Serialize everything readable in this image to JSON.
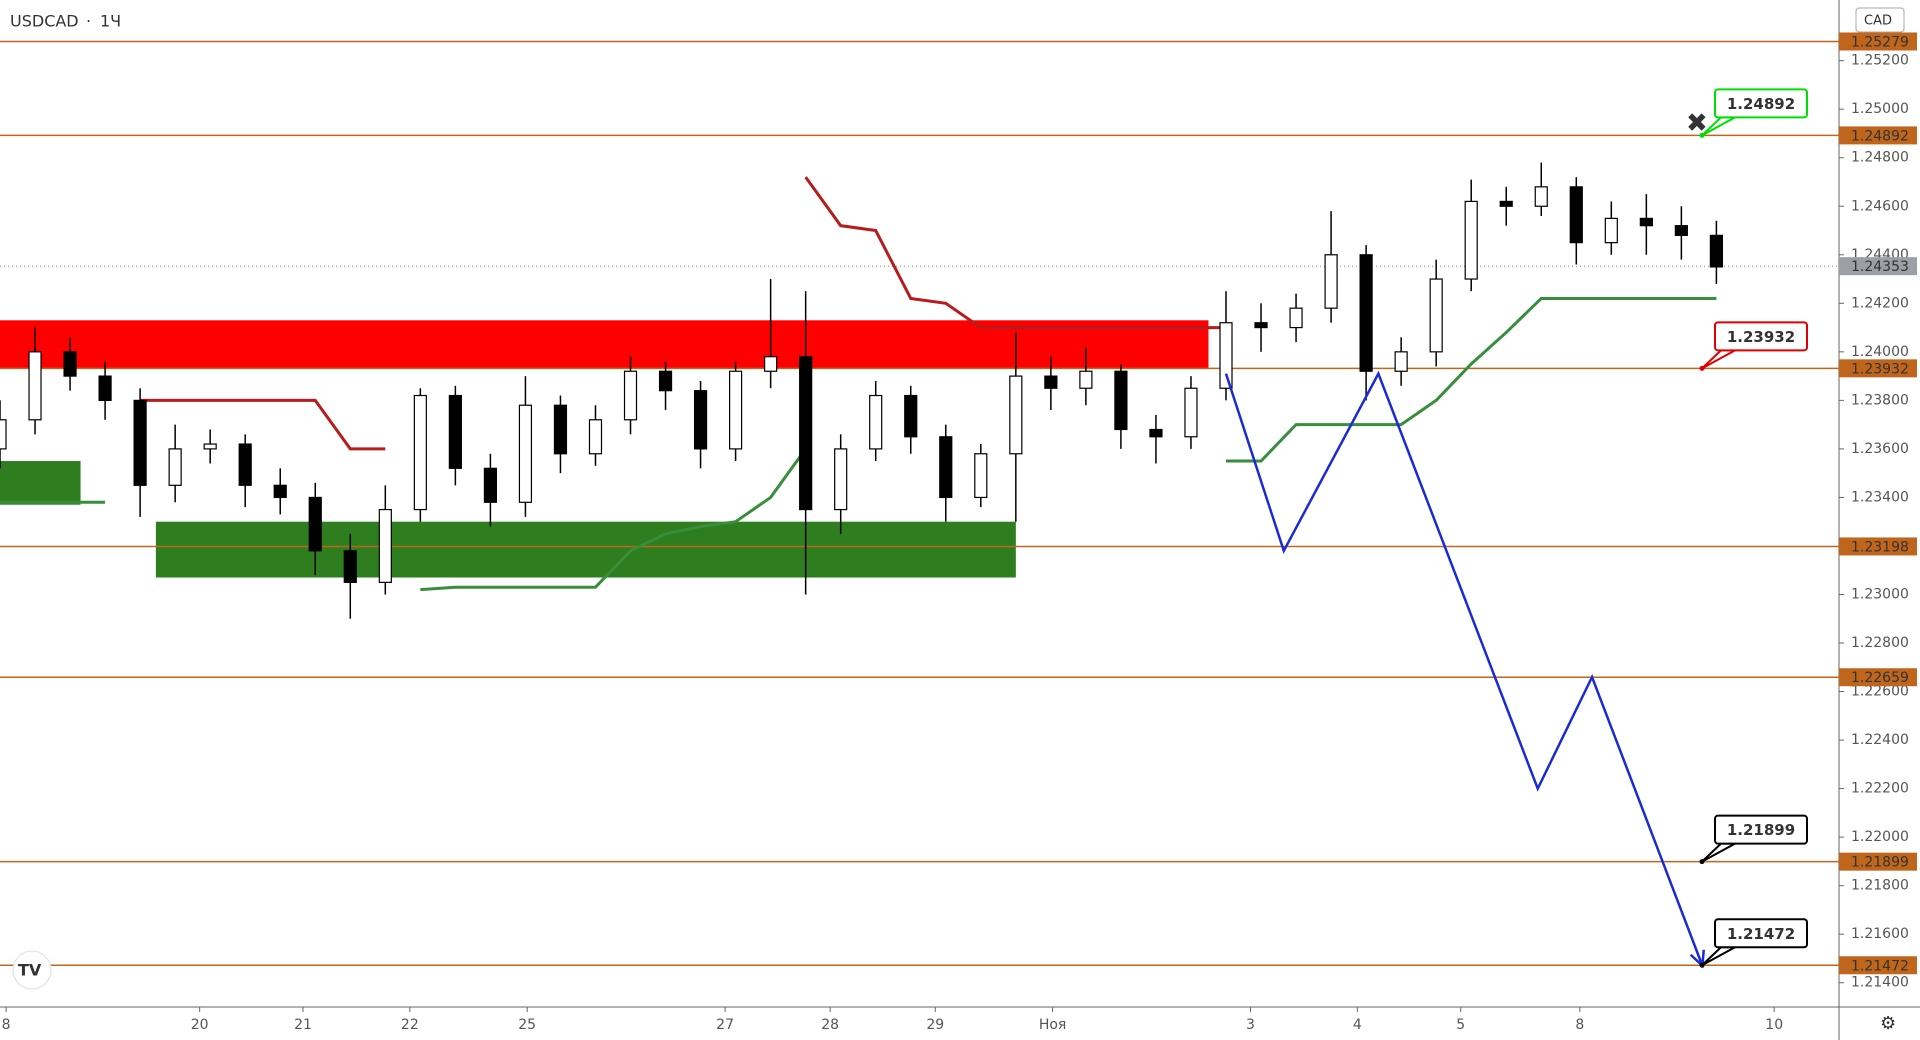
{
  "chart_data": {
    "type": "candlestick",
    "title": "USDCAD",
    "interval": "1Ч",
    "currency": "CAD",
    "x": [
      0,
      2,
      4,
      6,
      8,
      10,
      12,
      14,
      16,
      18,
      20,
      22,
      24,
      26,
      28,
      30,
      32,
      34,
      36,
      38,
      40,
      42,
      44,
      46,
      48,
      50,
      52,
      54,
      56,
      58,
      60,
      62,
      64,
      66,
      68,
      70,
      72,
      74,
      76,
      78,
      80,
      82,
      84,
      86,
      88,
      90,
      92,
      94,
      96,
      98
    ],
    "open": [
      1.236,
      1.2372,
      1.24,
      1.239,
      1.238,
      1.2345,
      1.236,
      1.2362,
      1.2345,
      1.234,
      1.2318,
      1.2305,
      1.2335,
      1.2382,
      1.2352,
      1.2338,
      1.2378,
      1.2358,
      1.2372,
      1.2392,
      1.2384,
      1.236,
      1.2392,
      1.2398,
      1.2335,
      1.236,
      1.2382,
      1.2365,
      1.234,
      1.2358,
      1.239,
      1.2385,
      1.2392,
      1.2368,
      1.2365,
      1.2385,
      1.2412,
      1.241,
      1.2418,
      1.244,
      1.2392,
      1.24,
      1.243,
      1.2462,
      1.246,
      1.2468,
      1.2445,
      1.2455,
      1.2452,
      1.2448
    ],
    "high": [
      1.238,
      1.241,
      1.2406,
      1.2396,
      1.2385,
      1.237,
      1.2368,
      1.2366,
      1.2352,
      1.2346,
      1.2325,
      1.2345,
      1.2385,
      1.2386,
      1.2358,
      1.239,
      1.2382,
      1.2378,
      1.2398,
      1.2396,
      1.2388,
      1.2396,
      1.243,
      1.2425,
      1.2366,
      1.2388,
      1.2386,
      1.237,
      1.2362,
      1.2408,
      1.2398,
      1.2402,
      1.2395,
      1.2374,
      1.239,
      1.2425,
      1.242,
      1.2424,
      1.2458,
      1.2444,
      1.2406,
      1.2438,
      1.2471,
      1.2468,
      1.2478,
      1.2472,
      1.2462,
      1.2465,
      1.246,
      1.2454
    ],
    "low": [
      1.2352,
      1.2366,
      1.2384,
      1.2372,
      1.2332,
      1.2338,
      1.2354,
      1.2336,
      1.2333,
      1.2308,
      1.229,
      1.23,
      1.233,
      1.2345,
      1.2328,
      1.2332,
      1.235,
      1.2353,
      1.2366,
      1.2376,
      1.2352,
      1.2355,
      1.2385,
      1.23,
      1.2325,
      1.2355,
      1.2358,
      1.233,
      1.2336,
      1.233,
      1.2376,
      1.2378,
      1.236,
      1.2354,
      1.236,
      1.238,
      1.24,
      1.2404,
      1.2412,
      1.238,
      1.2386,
      1.2394,
      1.2425,
      1.2452,
      1.2456,
      1.2436,
      1.244,
      1.244,
      1.2438,
      1.2428
    ],
    "close": [
      1.2372,
      1.24,
      1.239,
      1.238,
      1.2345,
      1.236,
      1.2362,
      1.2345,
      1.234,
      1.2318,
      1.2305,
      1.2335,
      1.2382,
      1.2352,
      1.2338,
      1.2378,
      1.2358,
      1.2372,
      1.2392,
      1.2384,
      1.236,
      1.2392,
      1.2398,
      1.2335,
      1.236,
      1.2382,
      1.2365,
      1.234,
      1.2358,
      1.239,
      1.2385,
      1.2392,
      1.2368,
      1.2365,
      1.2385,
      1.2412,
      1.241,
      1.2418,
      1.244,
      1.2392,
      1.24,
      1.243,
      1.2462,
      1.246,
      1.2468,
      1.2445,
      1.2455,
      1.2452,
      1.2448,
      1.2435
    ],
    "trend_down": {
      "color": "#b71c1c",
      "values": [
        null,
        null,
        null,
        null,
        1.238,
        1.238,
        1.238,
        1.238,
        1.238,
        1.238,
        1.236,
        1.236,
        null,
        null,
        null,
        null,
        null,
        null,
        null,
        null,
        null,
        null,
        null,
        1.2472,
        1.2452,
        1.245,
        1.2422,
        1.242,
        1.241,
        1.241,
        1.241,
        1.241,
        1.241,
        1.241,
        1.241,
        1.241,
        null,
        null,
        null,
        null,
        null,
        null,
        null,
        null,
        null,
        null,
        null,
        null,
        null,
        null
      ]
    },
    "trend_up": {
      "color": "#388e3c",
      "values": [
        1.2338,
        1.2338,
        1.2338,
        1.2338,
        null,
        null,
        null,
        null,
        null,
        null,
        null,
        null,
        1.2302,
        1.2303,
        1.2303,
        1.2303,
        1.2303,
        1.2303,
        1.2318,
        1.2325,
        1.2328,
        1.233,
        1.234,
        1.236,
        null,
        null,
        null,
        null,
        null,
        null,
        null,
        null,
        null,
        null,
        null,
        1.2355,
        1.2355,
        1.237,
        1.237,
        1.237,
        1.237,
        1.238,
        1.2395,
        1.2408,
        1.2422,
        1.2422,
        1.2422,
        1.2422,
        1.2422,
        1.2422
      ]
    },
    "zones": [
      {
        "x": [
          0,
          69
        ],
        "range": [
          1.2393,
          1.2413
        ],
        "color": "#ff0000"
      },
      {
        "x": [
          8.9,
          58
        ],
        "range": [
          1.2307,
          1.233
        ],
        "color": "#2e7d1e"
      },
      {
        "x": [
          0,
          4.6
        ],
        "range": [
          1.2337,
          1.2355
        ],
        "color": "#2e7d1e"
      }
    ],
    "levels": [
      {
        "value": 1.25279,
        "color": "#c0661c"
      },
      {
        "value": 1.24892,
        "color": "#c0661c"
      },
      {
        "value": 1.23932,
        "color": "#c0661c"
      },
      {
        "value": 1.23198,
        "color": "#c0661c"
      },
      {
        "value": 1.22659,
        "color": "#c0661c"
      },
      {
        "value": 1.21899,
        "color": "#c0661c"
      },
      {
        "value": 1.21472,
        "color": "#c0661c"
      }
    ],
    "last_price": 1.24353,
    "callouts": [
      {
        "value": 1.24892,
        "color": "#00e000"
      },
      {
        "value": 1.23932,
        "color": "#e00000"
      },
      {
        "value": 1.21899,
        "color": "#000000"
      },
      {
        "value": 1.21472,
        "color": "#000000"
      }
    ],
    "forecast": {
      "color": "#1a2bd6",
      "x": [
        70,
        73.3,
        78.7,
        87.8,
        90.9,
        97.2
      ],
      "values": [
        1.2391,
        1.2318,
        1.2391,
        1.222,
        1.2266,
        1.2147
      ]
    },
    "xlim": [
      0,
      105
    ],
    "ylim": [
      1.213,
      1.2545
    ],
    "xticks": [
      {
        "value": 0.35,
        "label": "8"
      },
      {
        "value": 11.4,
        "label": "20"
      },
      {
        "value": 17.3,
        "label": "21"
      },
      {
        "value": 23.4,
        "label": "22"
      },
      {
        "value": 30.1,
        "label": "25"
      },
      {
        "value": 41.4,
        "label": "27"
      },
      {
        "value": 47.4,
        "label": "28"
      },
      {
        "value": 53.4,
        "label": "29"
      },
      {
        "value": 60.1,
        "label": "Ноя"
      },
      {
        "value": 71.4,
        "label": "3"
      },
      {
        "value": 77.5,
        "label": "4"
      },
      {
        "value": 83.4,
        "label": "5"
      },
      {
        "value": 90.2,
        "label": "8"
      },
      {
        "value": 101.3,
        "label": "10"
      }
    ],
    "yticks": [
      {
        "value": 1.252,
        "label": "1.25200"
      },
      {
        "value": 1.25,
        "label": "1.25000"
      },
      {
        "value": 1.248,
        "label": "1.24800"
      },
      {
        "value": 1.246,
        "label": "1.24600"
      },
      {
        "value": 1.244,
        "label": "1.24400"
      },
      {
        "value": 1.242,
        "label": "1.24200"
      },
      {
        "value": 1.24,
        "label": "1.24000"
      },
      {
        "value": 1.238,
        "label": "1.23800"
      },
      {
        "value": 1.236,
        "label": "1.23600"
      },
      {
        "value": 1.234,
        "label": "1.23400"
      },
      {
        "value": 1.23,
        "label": "1.23000"
      },
      {
        "value": 1.228,
        "label": "1.22800"
      },
      {
        "value": 1.226,
        "label": "1.22600"
      },
      {
        "value": 1.224,
        "label": "1.22400"
      },
      {
        "value": 1.222,
        "label": "1.22200"
      },
      {
        "value": 1.22,
        "label": "1.22000"
      },
      {
        "value": 1.218,
        "label": "1.21800"
      },
      {
        "value": 1.216,
        "label": "1.21600"
      },
      {
        "value": 1.214,
        "label": "1.21400"
      }
    ]
  }
}
